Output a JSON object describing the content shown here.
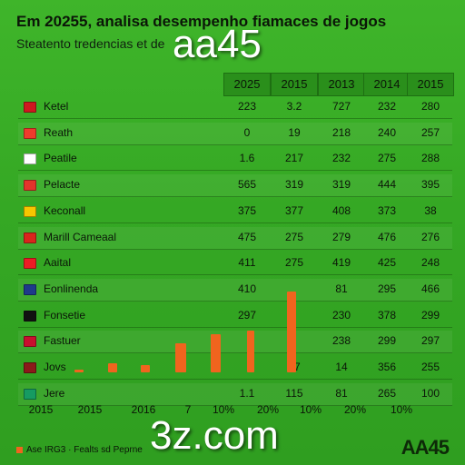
{
  "header": {
    "title": "Em 20255, analisa desempenho fiamaces de jogos",
    "subtitle": "Steatento tredencias et de",
    "watermark": "aa45"
  },
  "table": {
    "columns": [
      "2025",
      "2015",
      "2013",
      "2014",
      "2015"
    ],
    "rows": [
      {
        "name": "Ketel",
        "flag": "#d0171f",
        "values": [
          "223",
          "3.2",
          "727",
          "232",
          "280"
        ]
      },
      {
        "name": "Reath",
        "flag": "#ef3b2c",
        "values": [
          "0",
          "19",
          "218",
          "240",
          "257"
        ]
      },
      {
        "name": "Peatile",
        "flag": "#ffffff",
        "values": [
          "1.6",
          "217",
          "232",
          "275",
          "288"
        ]
      },
      {
        "name": "Pelacte",
        "flag": "#e3332b",
        "values": [
          "565",
          "319",
          "319",
          "444",
          "395"
        ]
      },
      {
        "name": "Keconall",
        "flag": "#f7c600",
        "values": [
          "375",
          "377",
          "408",
          "373",
          "38"
        ]
      },
      {
        "name": "Marill Cameaal",
        "flag": "#d9261c",
        "values": [
          "475",
          "275",
          "279",
          "476",
          "276"
        ]
      },
      {
        "name": "Aaital",
        "flag": "#ec1c24",
        "values": [
          "411",
          "275",
          "419",
          "425",
          "248"
        ]
      },
      {
        "name": "Eonlinenda",
        "flag": "#1e3a8a",
        "values": [
          "410",
          "",
          "81",
          "295",
          "466"
        ]
      },
      {
        "name": "Fonsetie",
        "flag": "#111111",
        "values": [
          "297",
          "",
          "230",
          "378",
          "299"
        ]
      },
      {
        "name": "Fastuer",
        "flag": "#c8102e",
        "values": [
          "",
          "",
          "238",
          "299",
          "297"
        ]
      },
      {
        "name": "Jovs",
        "flag": "#8b1a1a",
        "values": [
          "",
          "77",
          "14",
          "356",
          "255"
        ]
      },
      {
        "name": "Jere",
        "flag": "#169b62",
        "values": [
          "1.1",
          "115",
          "81",
          "265",
          "100"
        ]
      }
    ]
  },
  "xaxis": {
    "labels": [
      "2015",
      "2015",
      "2016",
      "7",
      "10%",
      "20%",
      "10%",
      "20%",
      "10%"
    ]
  },
  "bars": {
    "color": "#f0641e",
    "heights": [
      0.02,
      0.09,
      0.07,
      0.29,
      0.38,
      0.42,
      0.81
    ]
  },
  "footer": {
    "domain": "3z.com",
    "legend": "Ase IRG3 · Fealts sd Peprne",
    "logo": "AA45"
  }
}
